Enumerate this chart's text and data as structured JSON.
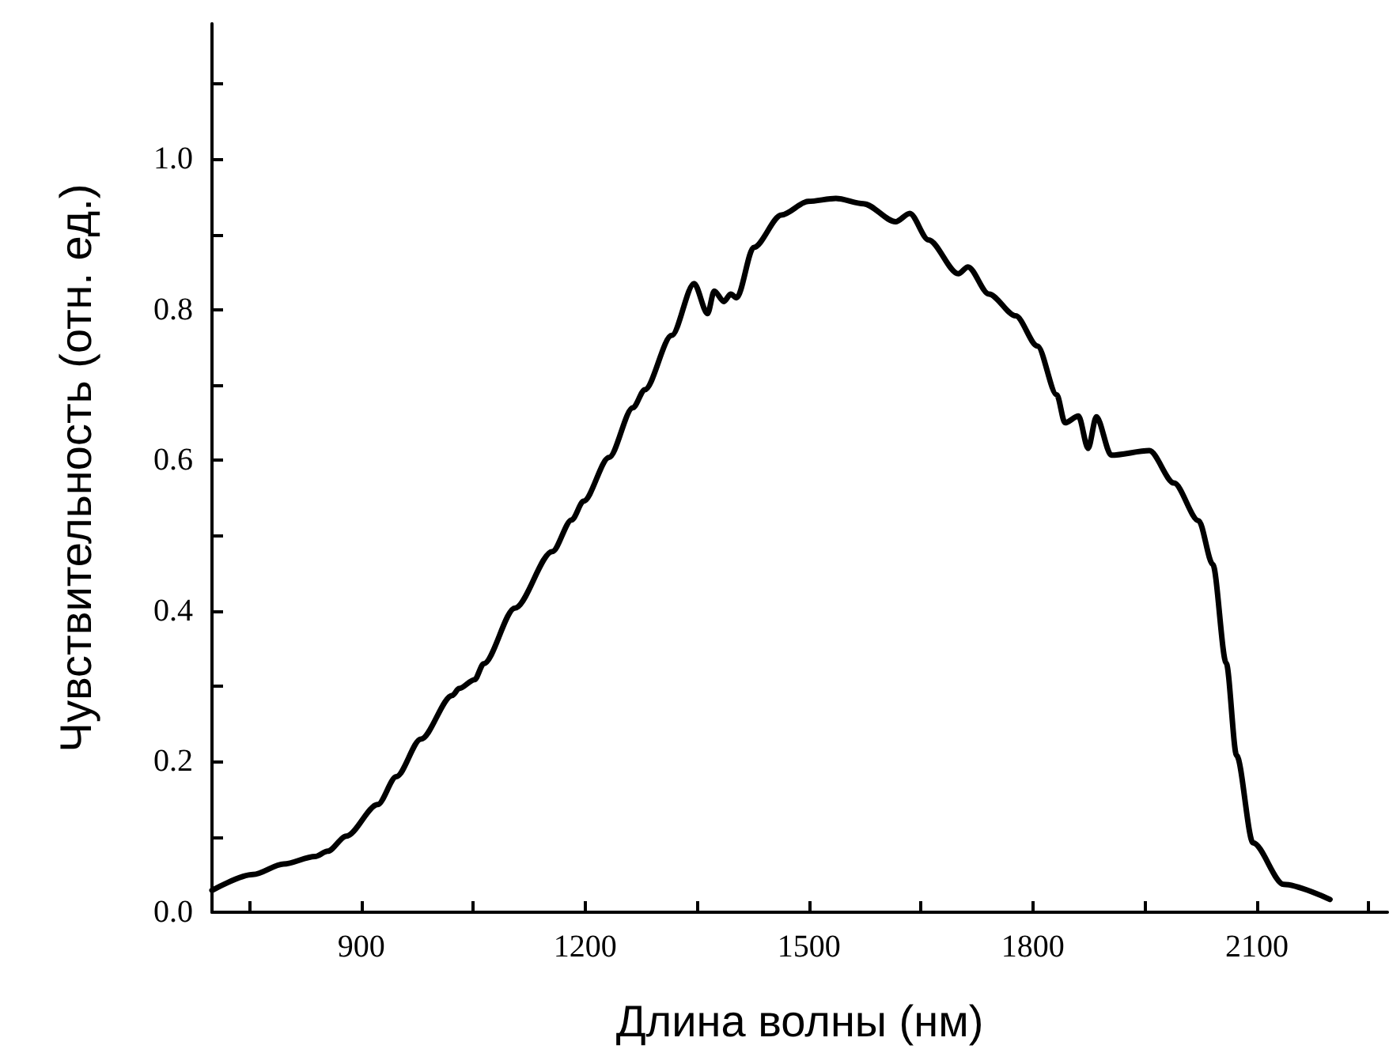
{
  "chart_data": {
    "type": "line",
    "xlabel": "Длина волны (нм)",
    "ylabel": "Чувствительность (отн. ед.)",
    "xlim": [
      700,
      2275
    ],
    "ylim": [
      0,
      1.18
    ],
    "xticks": [
      {
        "value": 750,
        "label": null
      },
      900,
      {
        "value": 1050,
        "label": null
      },
      1200,
      {
        "value": 1350,
        "label": null
      },
      1500,
      {
        "value": 1650,
        "label": null
      },
      1800,
      {
        "value": 1950,
        "label": null
      },
      2100,
      {
        "value": 2250,
        "label": null
      }
    ],
    "yticks": [
      {
        "value": 0,
        "label": "0.0"
      },
      {
        "value": 0.1,
        "label": null
      },
      0.2,
      {
        "value": 0.3,
        "label": null
      },
      0.4,
      {
        "value": 0.5,
        "label": null
      },
      0.6,
      {
        "value": 0.7,
        "label": null
      },
      0.8,
      {
        "value": 0.9,
        "label": null
      },
      {
        "value": 1,
        "label": "1.0"
      },
      {
        "value": 1.1,
        "label": null
      }
    ],
    "marker": "none",
    "line_style": "solid",
    "series": [
      {
        "color": "#000000",
        "x": [
          700,
          755,
          796,
          838,
          855,
          880,
          922,
          947,
          980,
          1022,
          1031,
          1052,
          1064,
          1106,
          1156,
          1182,
          1198,
          1232,
          1264,
          1280,
          1316,
          1346,
          1364,
          1373,
          1386,
          1395,
          1403,
          1426,
          1463,
          1499,
          1536,
          1573,
          1616,
          1635,
          1660,
          1700,
          1713,
          1741,
          1777,
          1806,
          1832,
          1843,
          1861,
          1874,
          1885,
          1905,
          1956,
          1989,
          2022,
          2041,
          2059,
          2073,
          2095,
          2136,
          2198
        ],
        "values": [
          0.029,
          0.05,
          0.064,
          0.074,
          0.081,
          0.101,
          0.143,
          0.18,
          0.23,
          0.288,
          0.297,
          0.309,
          0.33,
          0.404,
          0.479,
          0.521,
          0.546,
          0.604,
          0.67,
          0.694,
          0.766,
          0.835,
          0.795,
          0.825,
          0.811,
          0.821,
          0.816,
          0.883,
          0.926,
          0.944,
          0.948,
          0.941,
          0.917,
          0.928,
          0.893,
          0.848,
          0.857,
          0.821,
          0.792,
          0.752,
          0.687,
          0.65,
          0.659,
          0.616,
          0.658,
          0.607,
          0.613,
          0.57,
          0.52,
          0.462,
          0.331,
          0.208,
          0.092,
          0.037,
          0.017
        ]
      }
    ]
  }
}
